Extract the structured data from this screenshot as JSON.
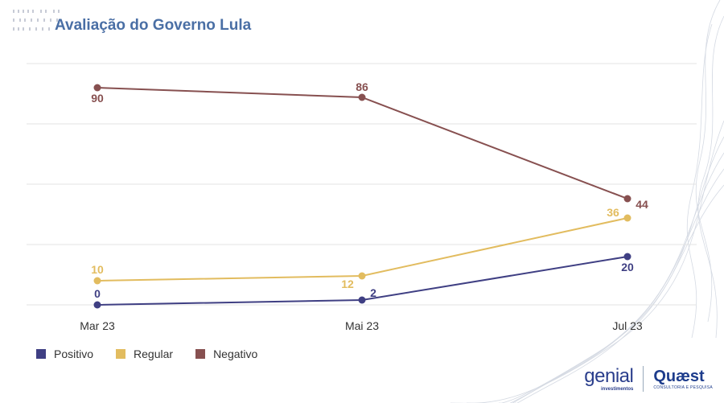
{
  "title": "Avaliação do Governo Lula",
  "chart_data": {
    "type": "line",
    "categories": [
      "Mar 23",
      "Mai 23",
      "Jul 23"
    ],
    "ylim": [
      0,
      100
    ],
    "grid": true,
    "legend_position": "bottom-left",
    "series": [
      {
        "name": "Positivo",
        "color": "#3f3f83",
        "values": [
          0,
          2,
          20
        ]
      },
      {
        "name": "Regular",
        "color": "#e2bc5f",
        "values": [
          10,
          12,
          36
        ]
      },
      {
        "name": "Negativo",
        "color": "#875050",
        "values": [
          90,
          86,
          44
        ]
      }
    ]
  },
  "legend": [
    {
      "label": "Positivo",
      "color": "#3f3f83"
    },
    {
      "label": "Regular",
      "color": "#e2bc5f"
    },
    {
      "label": "Negativo",
      "color": "#875050"
    }
  ],
  "logos": {
    "genial_main": "genial",
    "genial_sub": "investimentos",
    "quaest_main": "Quæst",
    "quaest_sub": "CONSULTORIA E PESQUISA"
  }
}
